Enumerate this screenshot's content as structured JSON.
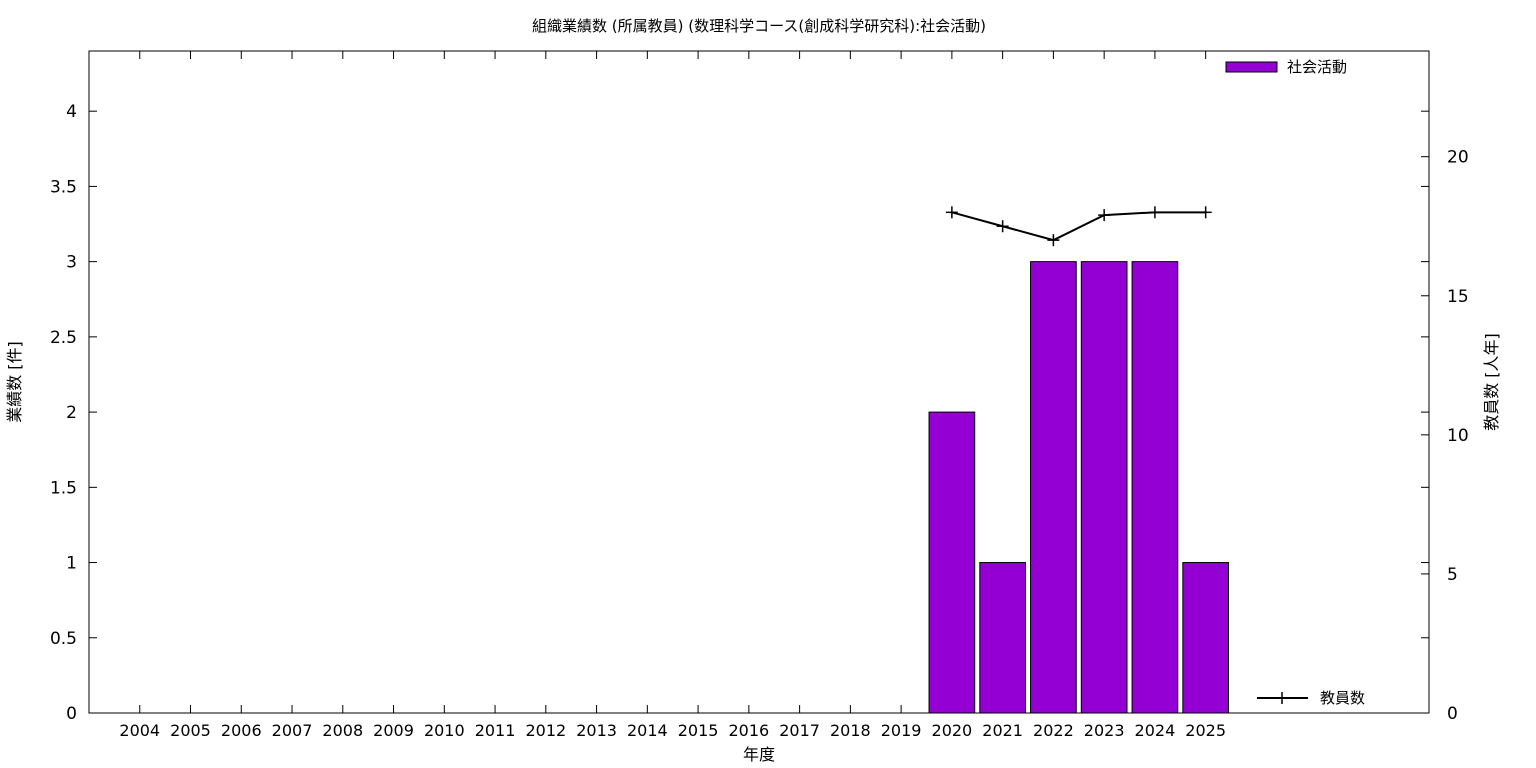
{
  "chart_data": {
    "type": "bar",
    "title": "組織業績数 (所属教員) (数理科学コース(創成科学研究科):社会活動)",
    "xlabel": "年度",
    "ylabel": "業績数 [件]",
    "y2label": "教員数 [人年]",
    "categories": [
      "2004",
      "2005",
      "2006",
      "2007",
      "2008",
      "2009",
      "2010",
      "2011",
      "2012",
      "2013",
      "2014",
      "2015",
      "2016",
      "2017",
      "2018",
      "2019",
      "2020",
      "2021",
      "2022",
      "2023",
      "2024",
      "2025"
    ],
    "ylim": [
      0,
      4.4
    ],
    "y_ticks": [
      "0",
      "0.5",
      "1",
      "1.5",
      "2",
      "2.5",
      "3",
      "3.5",
      "4"
    ],
    "y2lim": [
      0,
      23.8
    ],
    "y2_ticks": [
      "0",
      "5",
      "10",
      "15",
      "20"
    ],
    "grid": false,
    "series": [
      {
        "name": "社会活動",
        "type": "bar",
        "axis": "left",
        "color": "#9400d3",
        "values": [
          null,
          null,
          null,
          null,
          null,
          null,
          null,
          null,
          null,
          null,
          null,
          null,
          null,
          null,
          null,
          null,
          2,
          1,
          3,
          3,
          3,
          1
        ]
      },
      {
        "name": "教員数",
        "type": "line",
        "axis": "right",
        "color": "#000000",
        "values": [
          null,
          null,
          null,
          null,
          null,
          null,
          null,
          null,
          null,
          null,
          null,
          null,
          null,
          null,
          null,
          null,
          18.0,
          17.5,
          17.0,
          17.9,
          18.0,
          18.0
        ]
      }
    ],
    "legend": {
      "bar_label": "社会活動",
      "line_label": "教員数",
      "bar_position": "top-right",
      "line_position": "bottom-right"
    }
  }
}
